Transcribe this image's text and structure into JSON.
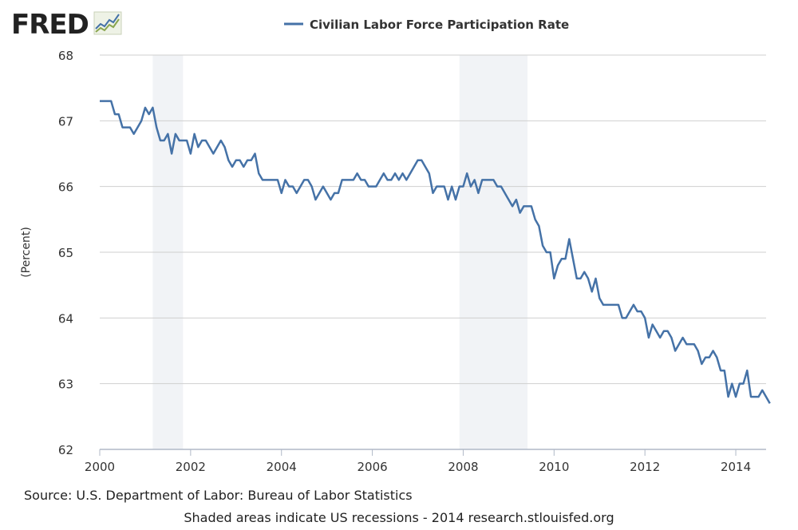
{
  "logo": {
    "text": "FRED",
    "mark": "line-chart-icon"
  },
  "chart_data": {
    "type": "line",
    "title": "",
    "legend": "top-center",
    "ylabel": "(Percent)",
    "xlabel": "",
    "ylim": [
      62,
      68
    ],
    "xlim": [
      "2000-01",
      "2014-09"
    ],
    "y_ticks": [
      "62",
      "63",
      "64",
      "65",
      "66",
      "67",
      "68"
    ],
    "x_ticks": [
      "2000",
      "2002",
      "2004",
      "2006",
      "2008",
      "2010",
      "2012",
      "2014"
    ],
    "grid": "horizontal",
    "recessions": [
      [
        "2001-03",
        "2001-11"
      ],
      [
        "2007-12",
        "2009-06"
      ]
    ],
    "series": [
      {
        "name": "Civilian Labor Force Participation Rate",
        "color": "#4572a7",
        "start": "2000-01",
        "frequency": "monthly",
        "values": [
          67.3,
          67.3,
          67.3,
          67.3,
          67.1,
          67.1,
          66.9,
          66.9,
          66.9,
          66.8,
          66.9,
          67.0,
          67.2,
          67.1,
          67.2,
          66.9,
          66.7,
          66.7,
          66.8,
          66.5,
          66.8,
          66.7,
          66.7,
          66.7,
          66.5,
          66.8,
          66.6,
          66.7,
          66.7,
          66.6,
          66.5,
          66.6,
          66.7,
          66.6,
          66.4,
          66.3,
          66.4,
          66.4,
          66.3,
          66.4,
          66.4,
          66.5,
          66.2,
          66.1,
          66.1,
          66.1,
          66.1,
          66.1,
          65.9,
          66.1,
          66.0,
          66.0,
          65.9,
          66.0,
          66.1,
          66.1,
          66.0,
          65.8,
          65.9,
          66.0,
          65.9,
          65.8,
          65.9,
          65.9,
          66.1,
          66.1,
          66.1,
          66.1,
          66.2,
          66.1,
          66.1,
          66.0,
          66.0,
          66.0,
          66.1,
          66.2,
          66.1,
          66.1,
          66.2,
          66.1,
          66.2,
          66.1,
          66.2,
          66.3,
          66.4,
          66.4,
          66.3,
          66.2,
          65.9,
          66.0,
          66.0,
          66.0,
          65.8,
          66.0,
          65.8,
          66.0,
          66.0,
          66.2,
          66.0,
          66.1,
          65.9,
          66.1,
          66.1,
          66.1,
          66.1,
          66.0,
          66.0,
          65.9,
          65.8,
          65.7,
          65.8,
          65.6,
          65.7,
          65.7,
          65.7,
          65.5,
          65.4,
          65.1,
          65.0,
          65.0,
          64.6,
          64.8,
          64.9,
          64.9,
          65.2,
          64.9,
          64.6,
          64.6,
          64.7,
          64.6,
          64.4,
          64.6,
          64.3,
          64.2,
          64.2,
          64.2,
          64.2,
          64.2,
          64.0,
          64.0,
          64.1,
          64.2,
          64.1,
          64.1,
          64.0,
          63.7,
          63.9,
          63.8,
          63.7,
          63.8,
          63.8,
          63.7,
          63.5,
          63.6,
          63.7,
          63.6,
          63.6,
          63.6,
          63.5,
          63.3,
          63.4,
          63.4,
          63.5,
          63.4,
          63.2,
          63.2,
          62.8,
          63.0,
          62.8,
          63.0,
          63.0,
          63.2,
          62.8,
          62.8,
          62.8,
          62.9,
          62.8,
          62.7
        ]
      }
    ]
  },
  "footer": {
    "source": "Source: U.S. Department of Labor: Bureau of Labor Statistics",
    "note": "Shaded areas indicate US recessions - 2014 research.stlouisfed.org"
  }
}
